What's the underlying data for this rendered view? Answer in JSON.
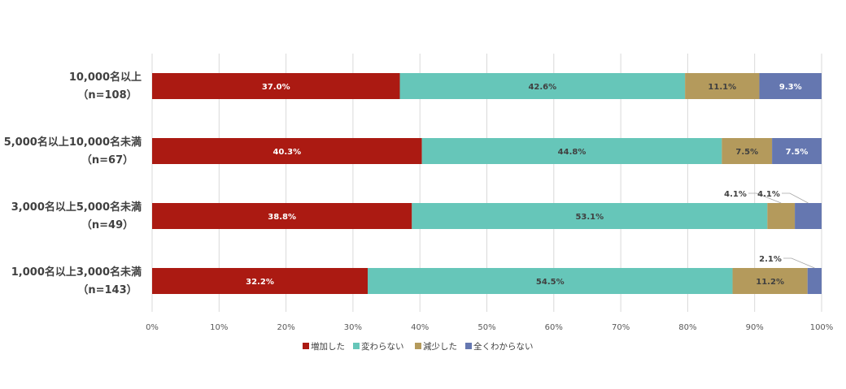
{
  "chart_data": {
    "type": "bar",
    "orientation": "horizontal",
    "stacked": true,
    "categories": [
      {
        "name": "10,000名以上",
        "n": "（n=108）"
      },
      {
        "name": "5,000名以上10,000名未満",
        "n": "（n=67）"
      },
      {
        "name": "3,000名以上5,000名未満",
        "n": "（n=49）"
      },
      {
        "name": "1,000名以上3,000名未満",
        "n": "（n=143）"
      }
    ],
    "series": [
      {
        "name": "増加した",
        "color": "#ab1a12",
        "label_color": "#ffffff",
        "values": [
          37.0,
          40.3,
          38.8,
          32.2
        ],
        "labels": [
          "37.0%",
          "40.3%",
          "38.8%",
          "32.2%"
        ]
      },
      {
        "name": "変わらない",
        "color": "#66c6b9",
        "label_color": "#404040",
        "values": [
          42.6,
          44.8,
          53.1,
          54.5
        ],
        "labels": [
          "42.6%",
          "44.8%",
          "53.1%",
          "54.5%"
        ]
      },
      {
        "name": "減少した",
        "color": "#b49a5c",
        "label_color": "#404040",
        "values": [
          11.1,
          7.5,
          4.1,
          11.2
        ],
        "labels": [
          "11.1%",
          "7.5%",
          "4.1%",
          "11.2%"
        ]
      },
      {
        "name": "全くわからない",
        "color": "#6577b0",
        "label_color": "#ffffff",
        "values": [
          9.3,
          7.5,
          4.1,
          2.1
        ],
        "labels": [
          "9.3%",
          "7.5%",
          "4.1%",
          "2.1%"
        ]
      }
    ],
    "callouts": [
      {
        "category": 2,
        "series": 2
      },
      {
        "category": 2,
        "series": 3
      },
      {
        "category": 3,
        "series": 3
      }
    ],
    "xlim": [
      0,
      100
    ],
    "xticks": [
      "0%",
      "10%",
      "20%",
      "30%",
      "40%",
      "50%",
      "60%",
      "70%",
      "80%",
      "90%",
      "100%"
    ],
    "grid": "vertical",
    "legend": "bottom-center"
  }
}
